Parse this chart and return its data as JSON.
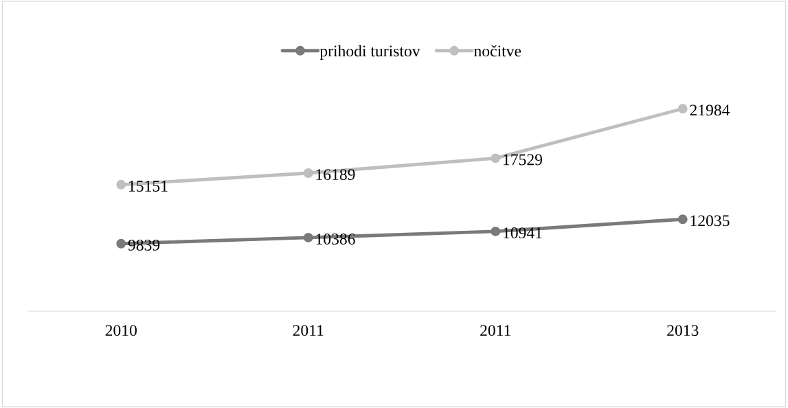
{
  "chart_data": {
    "type": "line",
    "categories": [
      "2010",
      "2011",
      "2011",
      "2013"
    ],
    "series": [
      {
        "name": "prihodi turistov",
        "color": "#7a7a7a",
        "values": [
          9839,
          10386,
          10941,
          12035
        ]
      },
      {
        "name": "nočitve",
        "color": "#bfbfbf",
        "values": [
          15151,
          16189,
          17529,
          21984
        ]
      }
    ],
    "tick_labels": "x",
    "data_labels": true,
    "legend": "top",
    "marker": "circle",
    "line_style": "solid",
    "grid": false
  }
}
